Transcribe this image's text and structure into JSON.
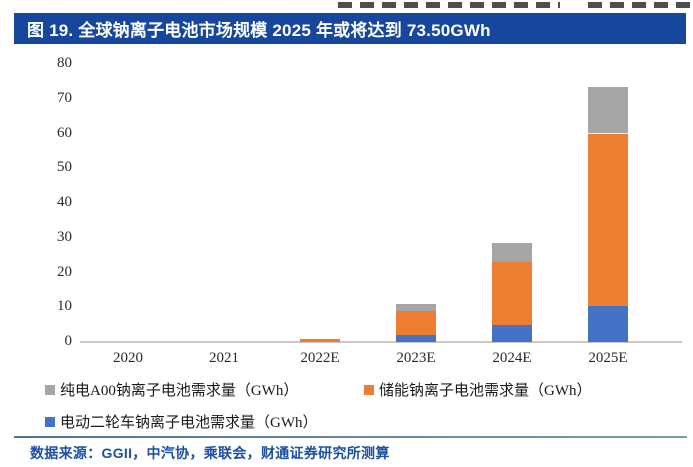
{
  "page": {
    "title_bar": "图 19. 全球钠离子电池市场规模 2025 年或将达到 73.50GWh",
    "source_note": "数据来源：GGII，中汽协，乘联会，财通证券研究所测算"
  },
  "colors": {
    "title_bg": "#17479c",
    "title_text": "#ffffff",
    "source_text": "#1d4fa3",
    "axis_text": "#2b2b2b",
    "baseline": "#c9c9c9",
    "bar_blue": "#4472c4",
    "bar_orange": "#ed7d31",
    "bar_gray": "#a5a5a5"
  },
  "chart_data": {
    "type": "bar",
    "stacked": true,
    "title": "图 19. 全球钠离子电池市场规模 2025 年或将达到 73.50GWh",
    "categories": [
      "2020",
      "2021",
      "2022E",
      "2023E",
      "2024E",
      "2025E"
    ],
    "series": [
      {
        "name": "电动二轮车钠离子电池需求量（GWh）",
        "color": "#4472c4",
        "values": [
          0,
          0,
          0,
          2,
          5,
          10.5
        ]
      },
      {
        "name": "储能钠离子电池需求量（GWh）",
        "color": "#ed7d31",
        "values": [
          0,
          0,
          1,
          7,
          18,
          49.5
        ]
      },
      {
        "name": "纯电A00钠离子电池需求量（GWh）",
        "color": "#a5a5a5",
        "values": [
          0,
          0,
          0,
          2,
          5.5,
          13.5
        ]
      }
    ],
    "totals": [
      0,
      0,
      1,
      11,
      28.5,
      73.5
    ],
    "xlabel": "",
    "ylabel": "",
    "ylim": [
      0,
      80
    ],
    "yticks": [
      0,
      10,
      20,
      30,
      40,
      50,
      60,
      70,
      80
    ],
    "grid": false,
    "legend_position": "bottom"
  },
  "legend": {
    "items": [
      {
        "label": "纯电A00钠离子电池需求量（GWh）",
        "color": "#a5a5a5"
      },
      {
        "label": "储能钠离子电池需求量（GWh）",
        "color": "#ed7d31"
      },
      {
        "label": "电动二轮车钠离子电池需求量（GWh）",
        "color": "#4472c4"
      }
    ]
  }
}
